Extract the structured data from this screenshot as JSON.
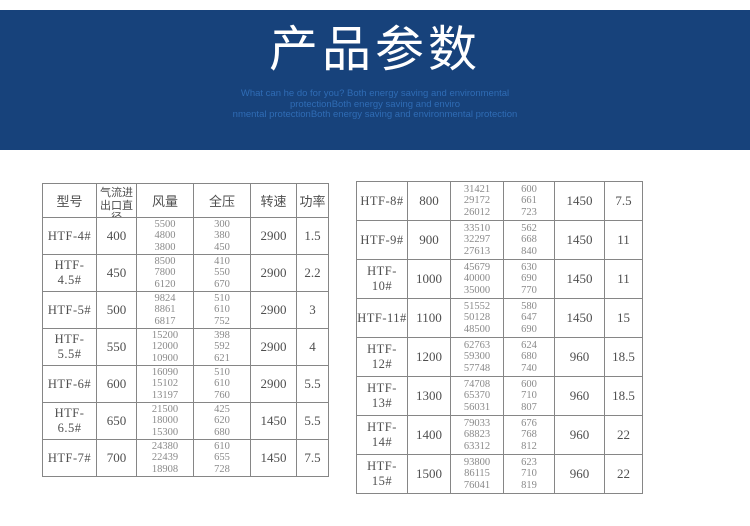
{
  "banner": {
    "title": "产品参数",
    "subtitle_lines": [
      "What can he do for you? Both energy saving and environmental",
      "protectionBoth energy saving and enviro",
      "nmental protectionBoth energy saving and environmental protection"
    ],
    "background_color": "#17427b",
    "title_color": "#ffffff",
    "subtitle_color": "#2f6cb5"
  },
  "left_table": {
    "headers": [
      "型号",
      "气流进出口直径",
      "风量",
      "全压",
      "转速",
      "功率"
    ],
    "rows": [
      {
        "model": "HTF-4#",
        "diameter": "400",
        "air_volume": [
          "5500",
          "4800",
          "3800"
        ],
        "total_pressure": [
          "300",
          "380",
          "450"
        ],
        "speed": "2900",
        "power": "1.5"
      },
      {
        "model": "HTF-4.5#",
        "diameter": "450",
        "air_volume": [
          "8500",
          "7800",
          "6120"
        ],
        "total_pressure": [
          "410",
          "550",
          "670"
        ],
        "speed": "2900",
        "power": "2.2"
      },
      {
        "model": "HTF-5#",
        "diameter": "500",
        "air_volume": [
          "9824",
          "8861",
          "6817"
        ],
        "total_pressure": [
          "510",
          "610",
          "752"
        ],
        "speed": "2900",
        "power": "3"
      },
      {
        "model": "HTF-5.5#",
        "diameter": "550",
        "air_volume": [
          "15200",
          "12000",
          "10900"
        ],
        "total_pressure": [
          "398",
          "592",
          "621"
        ],
        "speed": "2900",
        "power": "4"
      },
      {
        "model": "HTF-6#",
        "diameter": "600",
        "air_volume": [
          "16090",
          "15102",
          "13197"
        ],
        "total_pressure": [
          "510",
          "610",
          "760"
        ],
        "speed": "2900",
        "power": "5.5"
      },
      {
        "model": "HTF-6.5#",
        "diameter": "650",
        "air_volume": [
          "21500",
          "18000",
          "15300"
        ],
        "total_pressure": [
          "425",
          "620",
          "680"
        ],
        "speed": "1450",
        "power": "5.5"
      },
      {
        "model": "HTF-7#",
        "diameter": "700",
        "air_volume": [
          "24380",
          "22439",
          "18908"
        ],
        "total_pressure": [
          "610",
          "655",
          "728"
        ],
        "speed": "1450",
        "power": "7.5"
      }
    ]
  },
  "right_table": {
    "rows": [
      {
        "model": "HTF-8#",
        "diameter": "800",
        "air_volume": [
          "31421",
          "29172",
          "26012"
        ],
        "total_pressure": [
          "600",
          "661",
          "723"
        ],
        "speed": "1450",
        "power": "7.5"
      },
      {
        "model": "HTF-9#",
        "diameter": "900",
        "air_volume": [
          "33510",
          "32297",
          "27613"
        ],
        "total_pressure": [
          "562",
          "668",
          "840"
        ],
        "speed": "1450",
        "power": "11"
      },
      {
        "model": "HTF-10#",
        "diameter": "1000",
        "air_volume": [
          "45679",
          "40000",
          "35000"
        ],
        "total_pressure": [
          "630",
          "690",
          "770"
        ],
        "speed": "1450",
        "power": "11"
      },
      {
        "model": "HTF-11#",
        "diameter": "1100",
        "air_volume": [
          "51552",
          "50128",
          "48500"
        ],
        "total_pressure": [
          "580",
          "647",
          "690"
        ],
        "speed": "1450",
        "power": "15"
      },
      {
        "model": "HTF-12#",
        "diameter": "1200",
        "air_volume": [
          "62763",
          "59300",
          "57748"
        ],
        "total_pressure": [
          "624",
          "680",
          "740"
        ],
        "speed": "960",
        "power": "18.5"
      },
      {
        "model": "HTF-13#",
        "diameter": "1300",
        "air_volume": [
          "74708",
          "65370",
          "56031"
        ],
        "total_pressure": [
          "600",
          "710",
          "807"
        ],
        "speed": "960",
        "power": "18.5"
      },
      {
        "model": "HTF-14#",
        "diameter": "1400",
        "air_volume": [
          "79033",
          "68823",
          "63312"
        ],
        "total_pressure": [
          "676",
          "768",
          "812"
        ],
        "speed": "960",
        "power": "22"
      },
      {
        "model": "HTF-15#",
        "diameter": "1500",
        "air_volume": [
          "93800",
          "86115",
          "76041"
        ],
        "total_pressure": [
          "623",
          "710",
          "819"
        ],
        "speed": "960",
        "power": "22"
      }
    ]
  }
}
